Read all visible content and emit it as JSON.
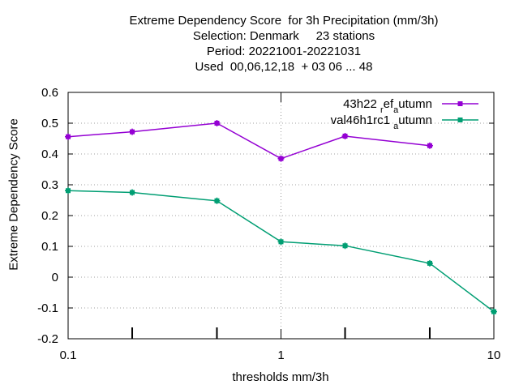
{
  "chart_data": {
    "type": "line",
    "title_lines": [
      "Extreme Dependency Score  for 3h Precipitation (mm/3h)",
      "Selection: Denmark     23 stations",
      "Period: 20221001-20221031",
      "Used  00,06,12,18  + 03 06 ... 48"
    ],
    "xlabel": "thresholds mm/3h",
    "ylabel": "Extreme Dependency Score",
    "x_scale": "log",
    "xlim": [
      0.1,
      10
    ],
    "ylim": [
      -0.2,
      0.6
    ],
    "x_ticks": [
      0.1,
      1,
      10
    ],
    "x_tick_labels": [
      "0.1",
      "1",
      "10"
    ],
    "x_minor_ticks": [
      0.2,
      0.5,
      2,
      5
    ],
    "y_ticks": [
      -0.2,
      -0.1,
      0,
      0.1,
      0.2,
      0.3,
      0.4,
      0.5,
      0.6
    ],
    "y_tick_labels": [
      "-0.2",
      "-0.1",
      "0",
      "0.1",
      "0.2",
      "0.3",
      "0.4",
      "0.5",
      "0.6"
    ],
    "grid": true,
    "legend_position": "top-right",
    "series": [
      {
        "name_main": "43h22",
        "name_parts": [
          [
            "43h22 ",
            "n"
          ],
          [
            "r",
            "sub"
          ],
          [
            "ef",
            "n"
          ],
          [
            "a",
            "sub"
          ],
          [
            "utumn",
            "n"
          ]
        ],
        "color": "#9400d3",
        "x": [
          0.1,
          0.2,
          0.5,
          1,
          2,
          5
        ],
        "values": [
          0.456,
          0.472,
          0.5,
          0.385,
          0.458,
          0.427
        ]
      },
      {
        "name_main": "val46h1rc1",
        "name_parts": [
          [
            "val46h1rc1 ",
            "n"
          ],
          [
            "a",
            "sub"
          ],
          [
            "utumn",
            "n"
          ]
        ],
        "color": "#009e73",
        "x": [
          0.1,
          0.2,
          0.5,
          1,
          2,
          5,
          10
        ],
        "values": [
          0.281,
          0.275,
          0.248,
          0.115,
          0.102,
          0.045,
          -0.112
        ]
      }
    ]
  }
}
